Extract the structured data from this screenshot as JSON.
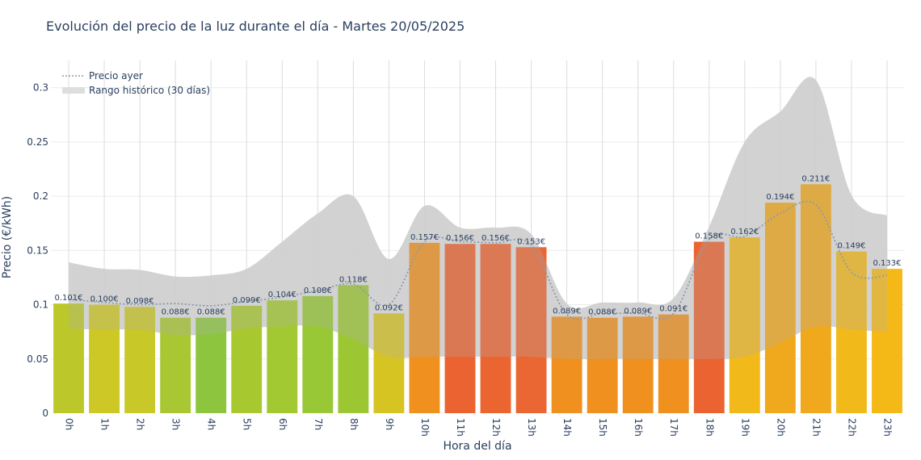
{
  "chart_data": {
    "type": "bar",
    "title": "Evolución del precio de la luz durante el día - Martes 20/05/2025",
    "xlabel": "Hora del día",
    "ylabel": "Precio (€/kWh)",
    "ylim": [
      0,
      0.325
    ],
    "yticks": [
      0,
      0.05,
      0.1,
      0.15,
      0.2,
      0.25,
      0.3
    ],
    "ytick_labels": [
      "0",
      "0.05",
      "0.1",
      "0.15",
      "0.2",
      "0.25",
      "0.3"
    ],
    "categories": [
      "0h",
      "1h",
      "2h",
      "3h",
      "4h",
      "5h",
      "6h",
      "7h",
      "8h",
      "9h",
      "10h",
      "11h",
      "12h",
      "13h",
      "14h",
      "15h",
      "16h",
      "17h",
      "18h",
      "19h",
      "20h",
      "21h",
      "22h",
      "23h"
    ],
    "values": [
      0.101,
      0.1,
      0.098,
      0.088,
      0.088,
      0.099,
      0.104,
      0.108,
      0.118,
      0.092,
      0.157,
      0.156,
      0.156,
      0.153,
      0.089,
      0.088,
      0.089,
      0.091,
      0.158,
      0.162,
      0.194,
      0.211,
      0.149,
      0.133
    ],
    "value_labels": [
      "0.101€",
      "0.100€",
      "0.098€",
      "0.088€",
      "0.088€",
      "0.099€",
      "0.104€",
      "0.108€",
      "0.118€",
      "0.092€",
      "0.157€",
      "0.156€",
      "0.156€",
      "0.153€",
      "0.089€",
      "0.088€",
      "0.089€",
      "0.091€",
      "0.158€",
      "0.162€",
      "0.194€",
      "0.211€",
      "0.149€",
      "0.133€"
    ],
    "bar_colors": [
      "#bcc82a",
      "#cdc825",
      "#c9c829",
      "#a8c732",
      "#8dc63e",
      "#a8c830",
      "#a2c932",
      "#98c835",
      "#9cc733",
      "#d6c423",
      "#f0901e",
      "#ea6331",
      "#ea6530",
      "#ea6733",
      "#f0901e",
      "#f0901e",
      "#f0901e",
      "#f0901e",
      "#ea6331",
      "#f2b91a",
      "#f0a81d",
      "#f0a81d",
      "#f2b91a",
      "#f4b917"
    ],
    "series": [
      {
        "name": "Precio ayer",
        "style": "dotted-line",
        "color": "#8c9aab",
        "values": [
          0.105,
          0.102,
          0.1,
          0.101,
          0.099,
          0.103,
          0.107,
          0.113,
          0.119,
          0.1,
          0.158,
          0.158,
          0.157,
          0.155,
          0.091,
          0.092,
          0.092,
          0.092,
          0.16,
          0.163,
          0.184,
          0.192,
          0.13,
          0.127
        ]
      },
      {
        "name": "Rango histórico (30 días)",
        "style": "band",
        "color": "#d9d9d9",
        "low": [
          0.078,
          0.077,
          0.077,
          0.072,
          0.073,
          0.078,
          0.08,
          0.08,
          0.068,
          0.052,
          0.052,
          0.052,
          0.052,
          0.052,
          0.05,
          0.05,
          0.05,
          0.05,
          0.05,
          0.052,
          0.065,
          0.08,
          0.077,
          0.075
        ],
        "high": [
          0.139,
          0.133,
          0.132,
          0.126,
          0.127,
          0.133,
          0.158,
          0.184,
          0.2,
          0.142,
          0.191,
          0.171,
          0.171,
          0.165,
          0.101,
          0.102,
          0.102,
          0.106,
          0.172,
          0.25,
          0.278,
          0.307,
          0.201,
          0.182
        ]
      }
    ],
    "grid": true,
    "legend_position": "top-left"
  }
}
